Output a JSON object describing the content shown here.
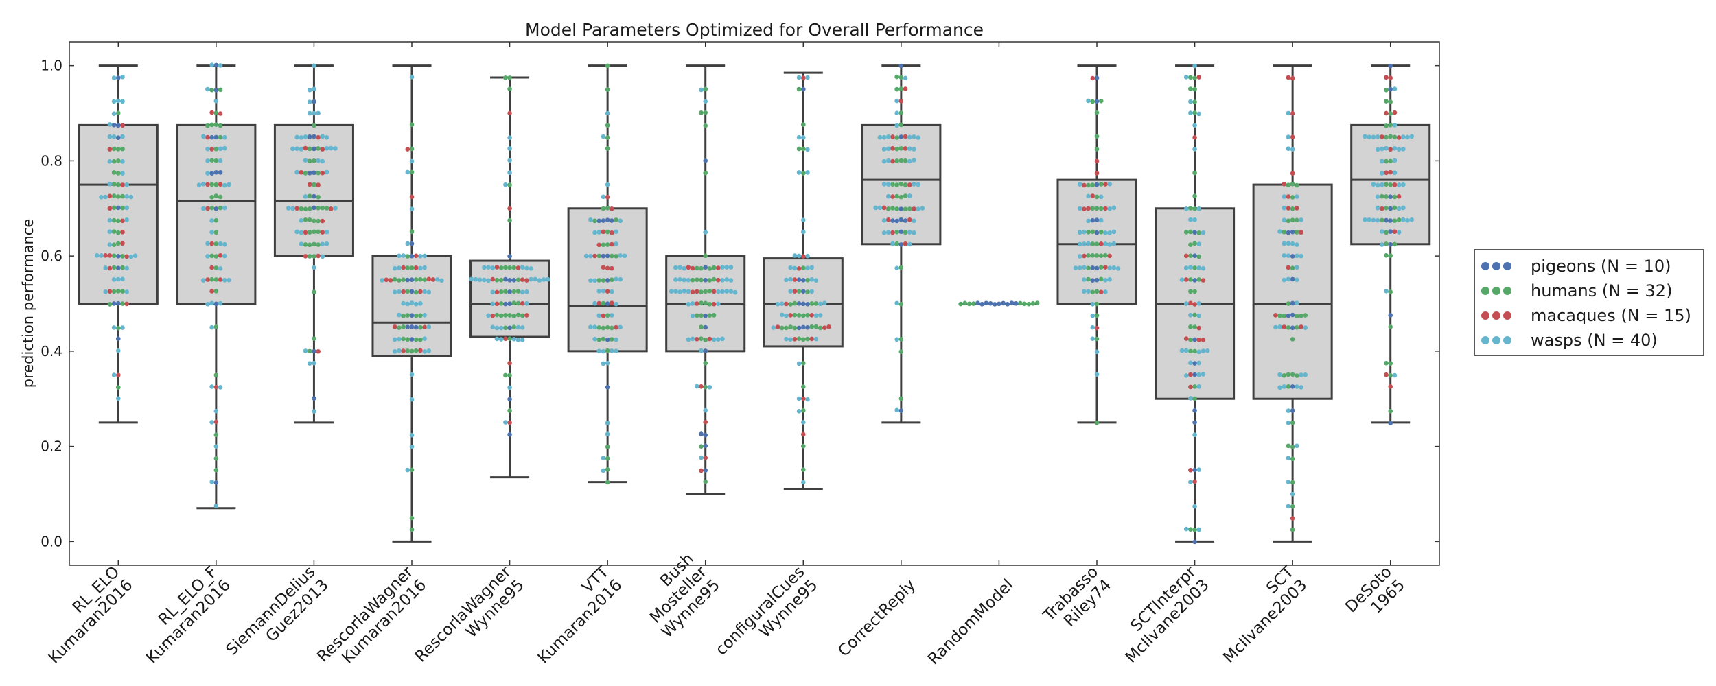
{
  "chart_data": {
    "type": "box",
    "title": "Model Parameters Optimized for Overall Performance",
    "ylabel": "prediction performance",
    "xlabel": "",
    "ylim": [
      -0.05,
      1.05
    ],
    "yticks": [
      "0.0",
      "0.2",
      "0.4",
      "0.6",
      "0.8",
      "1.0"
    ],
    "legend_position": "right",
    "grid": false,
    "groups": [
      {
        "name": "pigeons (N = 10)",
        "color": "#4c72b0",
        "n": 10
      },
      {
        "name": "humans (N = 32)",
        "color": "#55a868",
        "n": 32
      },
      {
        "name": "macaques (N = 15)",
        "color": "#c44e52",
        "n": 15
      },
      {
        "name": "wasps (N = 40)",
        "color": "#64b5cd",
        "n": 40
      }
    ],
    "models": [
      {
        "label": [
          "RL_ELO",
          "Kumaran2016"
        ],
        "whislo": 0.25,
        "q1": 0.5,
        "med": 0.75,
        "q3": 0.875,
        "whishi": 1.0
      },
      {
        "label": [
          "RL_ELO_F",
          "Kumaran2016"
        ],
        "whislo": 0.07,
        "q1": 0.5,
        "med": 0.715,
        "q3": 0.875,
        "whishi": 1.0
      },
      {
        "label": [
          "SiemannDelius",
          "Guez2013"
        ],
        "whislo": 0.25,
        "q1": 0.6,
        "med": 0.715,
        "q3": 0.875,
        "whishi": 1.0
      },
      {
        "label": [
          "RescorlaWagner",
          "Kumaran2016"
        ],
        "whislo": 0.0,
        "q1": 0.39,
        "med": 0.46,
        "q3": 0.6,
        "whishi": 1.0
      },
      {
        "label": [
          "RescorlaWagner",
          "Wynne95"
        ],
        "whislo": 0.135,
        "q1": 0.43,
        "med": 0.5,
        "q3": 0.59,
        "whishi": 0.975
      },
      {
        "label": [
          "VTT",
          "Kumaran2016"
        ],
        "whislo": 0.125,
        "q1": 0.4,
        "med": 0.495,
        "q3": 0.7,
        "whishi": 1.0
      },
      {
        "label": [
          "Bush",
          "Mosteller",
          "Wynne95"
        ],
        "whislo": 0.1,
        "q1": 0.4,
        "med": 0.5,
        "q3": 0.6,
        "whishi": 1.0
      },
      {
        "label": [
          "configuralCues",
          "Wynne95"
        ],
        "whislo": 0.11,
        "q1": 0.41,
        "med": 0.5,
        "q3": 0.595,
        "whishi": 0.985
      },
      {
        "label": [
          "CorrectReply"
        ],
        "whislo": 0.25,
        "q1": 0.625,
        "med": 0.76,
        "q3": 0.875,
        "whishi": 1.0
      },
      {
        "label": [
          "RandomModel"
        ],
        "whislo": 0.5,
        "q1": 0.5,
        "med": 0.5,
        "q3": 0.5,
        "whishi": 0.5
      },
      {
        "label": [
          "Trabasso",
          "Riley74"
        ],
        "whislo": 0.25,
        "q1": 0.5,
        "med": 0.625,
        "q3": 0.76,
        "whishi": 1.0
      },
      {
        "label": [
          "SCTInterpr",
          "McIlvane2003"
        ],
        "whislo": 0.0,
        "q1": 0.3,
        "med": 0.5,
        "q3": 0.7,
        "whishi": 1.0
      },
      {
        "label": [
          "SCT",
          "McIlvane2003"
        ],
        "whislo": 0.0,
        "q1": 0.3,
        "med": 0.5,
        "q3": 0.75,
        "whishi": 1.0
      },
      {
        "label": [
          "DeSoto",
          "1965"
        ],
        "whislo": 0.25,
        "q1": 0.625,
        "med": 0.76,
        "q3": 0.875,
        "whishi": 1.0
      }
    ]
  }
}
